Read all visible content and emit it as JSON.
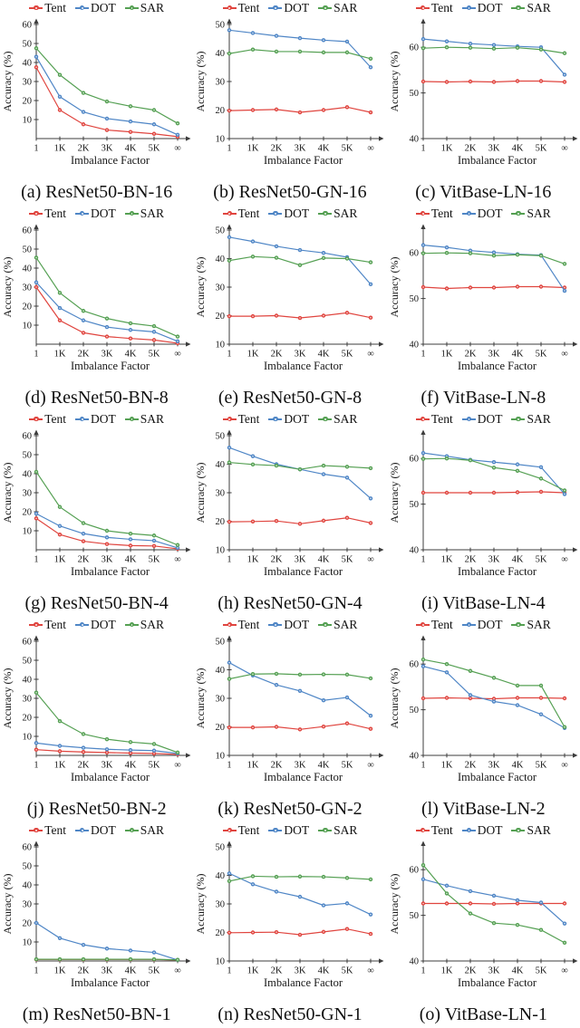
{
  "chart_data": {
    "type": "line",
    "categories": [
      "1",
      "1K",
      "2K",
      "3K",
      "4K",
      "5K",
      "∞"
    ],
    "xlabel": "Imbalance Factor",
    "ylabel": "Accuracy (%)",
    "grid": false,
    "legend_position": "top",
    "legend": [
      {
        "name": "Tent",
        "color": "#e0453f"
      },
      {
        "name": "DOT",
        "color": "#4f86c6"
      },
      {
        "name": "SAR",
        "color": "#55a053"
      }
    ],
    "charts": [
      {
        "caption": "(a) ResNet50-BN-16",
        "ylim": [
          0,
          60
        ],
        "yticks": [
          10,
          20,
          30,
          40,
          50,
          60
        ],
        "series": [
          {
            "name": "Tent",
            "values": [
              37.5,
              15,
              7.5,
              4.5,
              3.5,
              2.5,
              1
            ]
          },
          {
            "name": "DOT",
            "values": [
              43,
              22,
              14,
              10.5,
              9,
              7.5,
              2
            ]
          },
          {
            "name": "SAR",
            "values": [
              47.5,
              33.5,
              24,
              19.5,
              17,
              15,
              8
            ]
          }
        ]
      },
      {
        "caption": "(b) ResNet50-GN-16",
        "ylim": [
          10,
          50
        ],
        "yticks": [
          10,
          20,
          30,
          40,
          50
        ],
        "series": [
          {
            "name": "Tent",
            "values": [
              19.8,
              20,
              20.2,
              19.2,
              20,
              21,
              19.2
            ]
          },
          {
            "name": "DOT",
            "values": [
              48,
              47,
              46,
              45.2,
              44.5,
              44,
              35
            ]
          },
          {
            "name": "SAR",
            "values": [
              39.8,
              41.2,
              40.5,
              40.5,
              40.2,
              40.2,
              38
            ]
          }
        ]
      },
      {
        "caption": "(c) VitBase-LN-16",
        "ylim": [
          40,
          65
        ],
        "yticks": [
          40,
          50,
          60
        ],
        "series": [
          {
            "name": "Tent",
            "values": [
              52.5,
              52.4,
              52.5,
              52.4,
              52.6,
              52.6,
              52.4
            ]
          },
          {
            "name": "DOT",
            "values": [
              61.8,
              61.3,
              60.8,
              60.5,
              60.2,
              60,
              54
            ]
          },
          {
            "name": "SAR",
            "values": [
              59.8,
              60,
              59.9,
              59.7,
              59.9,
              59.5,
              58.7
            ]
          }
        ]
      },
      {
        "caption": "(d) ResNet50-BN-8",
        "ylim": [
          0,
          60
        ],
        "yticks": [
          10,
          20,
          30,
          40,
          50,
          60
        ],
        "series": [
          {
            "name": "Tent",
            "values": [
              30,
              12.5,
              6,
              4,
              3,
              2.2,
              0.5
            ]
          },
          {
            "name": "DOT",
            "values": [
              32.5,
              19,
              12.5,
              9,
              7.5,
              6.5,
              1.5
            ]
          },
          {
            "name": "SAR",
            "values": [
              45.5,
              27,
              17.5,
              13.5,
              11,
              9.5,
              4
            ]
          }
        ]
      },
      {
        "caption": "(e) ResNet50-GN-8",
        "ylim": [
          10,
          50
        ],
        "yticks": [
          10,
          20,
          30,
          40,
          50
        ],
        "series": [
          {
            "name": "Tent",
            "values": [
              19.8,
              19.8,
              20,
              19.2,
              20,
              21,
              19.3
            ]
          },
          {
            "name": "DOT",
            "values": [
              47.5,
              46,
              44.3,
              43,
              42,
              40.5,
              31
            ]
          },
          {
            "name": "SAR",
            "values": [
              39.3,
              40.7,
              40.3,
              37.7,
              40.2,
              40,
              38.7
            ]
          }
        ]
      },
      {
        "caption": "(f) VitBase-LN-8",
        "ylim": [
          40,
          65
        ],
        "yticks": [
          40,
          50,
          60
        ],
        "series": [
          {
            "name": "Tent",
            "values": [
              52.5,
              52.2,
              52.4,
              52.4,
              52.6,
              52.6,
              52.4
            ]
          },
          {
            "name": "DOT",
            "values": [
              61.7,
              61.2,
              60.5,
              60.1,
              59.7,
              59.5,
              51.7
            ]
          },
          {
            "name": "SAR",
            "values": [
              59.9,
              60,
              59.9,
              59.4,
              59.6,
              59.4,
              57.6
            ]
          }
        ]
      },
      {
        "caption": "(g) ResNet50-BN-4",
        "ylim": [
          0,
          60
        ],
        "yticks": [
          10,
          20,
          30,
          40,
          50,
          60
        ],
        "series": [
          {
            "name": "Tent",
            "values": [
              16.5,
              8,
              4.5,
              3,
              2.2,
              2,
              0.5
            ]
          },
          {
            "name": "DOT",
            "values": [
              19,
              12.5,
              8.5,
              6.5,
              5.5,
              4.8,
              1
            ]
          },
          {
            "name": "SAR",
            "values": [
              41,
              22.5,
              14,
              10,
              8.5,
              7.5,
              2.5
            ]
          }
        ]
      },
      {
        "caption": "(h) ResNet50-GN-4",
        "ylim": [
          10,
          50
        ],
        "yticks": [
          10,
          20,
          30,
          40,
          50
        ],
        "series": [
          {
            "name": "Tent",
            "values": [
              19.8,
              19.9,
              20.1,
              19.1,
              20.2,
              21.2,
              19.4
            ]
          },
          {
            "name": "DOT",
            "values": [
              45.8,
              42.8,
              40,
              38.2,
              36.5,
              35.3,
              28
            ]
          },
          {
            "name": "SAR",
            "values": [
              40.6,
              39.9,
              39.5,
              38.2,
              39.5,
              39.1,
              38.6
            ]
          }
        ]
      },
      {
        "caption": "(i) VitBase-LN-4",
        "ylim": [
          40,
          65
        ],
        "yticks": [
          40,
          50,
          60
        ],
        "series": [
          {
            "name": "Tent",
            "values": [
              52.5,
              52.5,
              52.5,
              52.5,
              52.6,
              52.7,
              52.5
            ]
          },
          {
            "name": "DOT",
            "values": [
              61.2,
              60.5,
              59.7,
              59.2,
              58.7,
              58.1,
              52.2
            ]
          },
          {
            "name": "SAR",
            "values": [
              59.9,
              60,
              59.6,
              58,
              57.3,
              55.6,
              53
            ]
          }
        ]
      },
      {
        "caption": "(j) ResNet50-BN-2",
        "ylim": [
          0,
          60
        ],
        "yticks": [
          10,
          20,
          30,
          40,
          50,
          60
        ],
        "series": [
          {
            "name": "Tent",
            "values": [
              3,
              2.2,
              1.8,
              1.5,
              1.2,
              1,
              0.5
            ]
          },
          {
            "name": "DOT",
            "values": [
              6.5,
              5,
              4,
              3.2,
              2.8,
              2.5,
              1
            ]
          },
          {
            "name": "SAR",
            "values": [
              33,
              18,
              11.2,
              8.5,
              7,
              6,
              1.5
            ]
          }
        ]
      },
      {
        "caption": "(k) ResNet50-GN-2",
        "ylim": [
          10,
          50
        ],
        "yticks": [
          10,
          20,
          30,
          40,
          50
        ],
        "series": [
          {
            "name": "Tent",
            "values": [
              19.8,
              19.8,
              20,
              19.1,
              20.1,
              21.2,
              19.3
            ]
          },
          {
            "name": "DOT",
            "values": [
              42.5,
              38,
              34.7,
              32.6,
              29.3,
              30.3,
              23.9
            ]
          },
          {
            "name": "SAR",
            "values": [
              36.8,
              38.5,
              38.6,
              38.3,
              38.4,
              38.3,
              37
            ]
          }
        ]
      },
      {
        "caption": "(l) VitBase-LN-2",
        "ylim": [
          40,
          65
        ],
        "yticks": [
          40,
          50,
          60
        ],
        "series": [
          {
            "name": "Tent",
            "values": [
              52.5,
              52.6,
              52.5,
              52.4,
              52.6,
              52.6,
              52.5
            ]
          },
          {
            "name": "DOT",
            "values": [
              59.5,
              58.2,
              53.2,
              51.8,
              51,
              49,
              46
            ]
          },
          {
            "name": "SAR",
            "values": [
              61,
              60,
              58.5,
              57,
              55.3,
              55.3,
              46.2
            ]
          }
        ]
      },
      {
        "caption": "(m) ResNet50-BN-1",
        "ylim": [
          0,
          60
        ],
        "yticks": [
          10,
          20,
          30,
          40,
          50,
          60
        ],
        "series": [
          {
            "name": "Tent",
            "values": [
              0.8,
              0.8,
              0.8,
              0.8,
              0.8,
              0.8,
              0.5
            ]
          },
          {
            "name": "DOT",
            "values": [
              20,
              12,
              8.5,
              6.5,
              5.5,
              4.5,
              0.5
            ]
          },
          {
            "name": "SAR",
            "values": [
              0.9,
              0.9,
              0.9,
              0.9,
              0.9,
              0.9,
              0.6
            ]
          }
        ]
      },
      {
        "caption": "(n) ResNet50-GN-1",
        "ylim": [
          10,
          50
        ],
        "yticks": [
          10,
          20,
          30,
          40,
          50
        ],
        "series": [
          {
            "name": "Tent",
            "values": [
              19.9,
              20,
              20.1,
              19.2,
              20.2,
              21.2,
              19.5
            ]
          },
          {
            "name": "DOT",
            "values": [
              40.7,
              36.9,
              34.3,
              32.5,
              29.5,
              30.2,
              26.3
            ]
          },
          {
            "name": "SAR",
            "values": [
              38,
              39.7,
              39.5,
              39.6,
              39.5,
              39.1,
              38.6
            ]
          }
        ]
      },
      {
        "caption": "(o) VitBase-LN-1",
        "ylim": [
          40,
          65
        ],
        "yticks": [
          40,
          50,
          60
        ],
        "series": [
          {
            "name": "Tent",
            "values": [
              52.6,
              52.6,
              52.6,
              52.5,
              52.6,
              52.6,
              52.6
            ]
          },
          {
            "name": "DOT",
            "values": [
              57.9,
              56.5,
              55.3,
              54.3,
              53.3,
              52.8,
              48.2
            ]
          },
          {
            "name": "SAR",
            "values": [
              61,
              54.8,
              50.4,
              48.3,
              47.9,
              46.8,
              44
            ]
          }
        ]
      }
    ]
  }
}
